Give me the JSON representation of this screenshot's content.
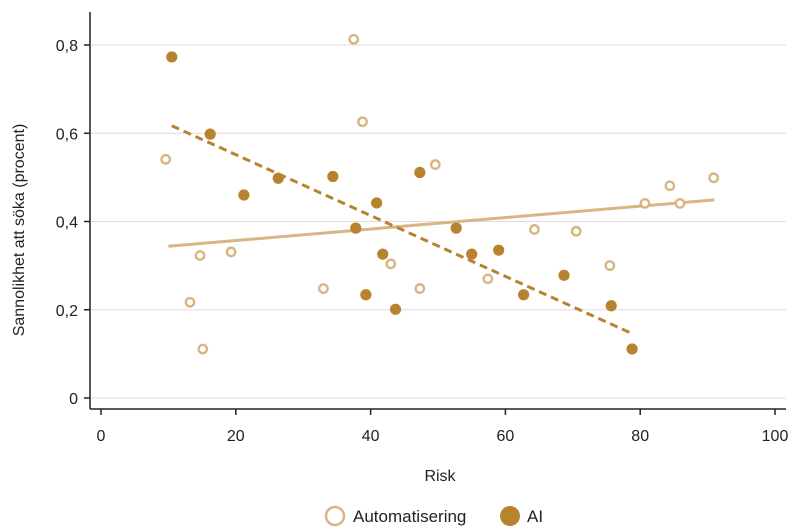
{
  "colors": {
    "automatisering": "#d9b583",
    "ai": "#b8832f",
    "grid": "#dddddd",
    "axis": "#222222"
  },
  "chart_data": {
    "type": "scatter",
    "xlabel": "Risk",
    "ylabel": "Sannolikhet att söka (procent)",
    "xlim": [
      0,
      100
    ],
    "ylim": [
      0,
      0.85
    ],
    "x_ticks": [
      0,
      20,
      40,
      60,
      80,
      100
    ],
    "x_tick_labels": [
      "0",
      "20",
      "40",
      "60",
      "80",
      "100"
    ],
    "y_ticks": [
      0,
      0.2,
      0.4,
      0.6,
      0.8
    ],
    "y_tick_labels": [
      "0",
      "0,2",
      "0,4",
      "0,6",
      "0,8"
    ],
    "grid": "horizontal",
    "legend_position": "bottom",
    "series": [
      {
        "name": "Automatisering",
        "marker": "hollow-circle",
        "points": [
          [
            9.6,
            0.541
          ],
          [
            13.2,
            0.217
          ],
          [
            14.7,
            0.323
          ],
          [
            15.1,
            0.111
          ],
          [
            19.3,
            0.331
          ],
          [
            33.0,
            0.248
          ],
          [
            37.5,
            0.813
          ],
          [
            38.8,
            0.626
          ],
          [
            43.0,
            0.304
          ],
          [
            47.3,
            0.248
          ],
          [
            49.6,
            0.529
          ],
          [
            57.4,
            0.27
          ],
          [
            64.3,
            0.382
          ],
          [
            70.5,
            0.378
          ],
          [
            75.5,
            0.3
          ],
          [
            80.7,
            0.441
          ],
          [
            84.4,
            0.481
          ],
          [
            85.9,
            0.441
          ],
          [
            90.9,
            0.499
          ]
        ],
        "fit_line": {
          "x": [
            10.0,
            91.0
          ],
          "y": [
            0.344,
            0.449
          ],
          "style": "solid"
        }
      },
      {
        "name": "AI",
        "marker": "filled-circle",
        "points": [
          [
            10.5,
            0.773
          ],
          [
            16.2,
            0.598
          ],
          [
            21.2,
            0.46
          ],
          [
            26.3,
            0.498
          ],
          [
            34.4,
            0.502
          ],
          [
            37.8,
            0.385
          ],
          [
            39.3,
            0.234
          ],
          [
            40.9,
            0.442
          ],
          [
            41.8,
            0.326
          ],
          [
            43.7,
            0.201
          ],
          [
            47.3,
            0.511
          ],
          [
            52.7,
            0.385
          ],
          [
            55.0,
            0.326
          ],
          [
            59.0,
            0.335
          ],
          [
            62.7,
            0.234
          ],
          [
            68.7,
            0.278
          ],
          [
            75.7,
            0.209
          ],
          [
            78.8,
            0.111
          ]
        ],
        "fit_line": {
          "x": [
            10.5,
            78.8
          ],
          "y": [
            0.617,
            0.146
          ],
          "style": "dashed"
        }
      }
    ]
  }
}
